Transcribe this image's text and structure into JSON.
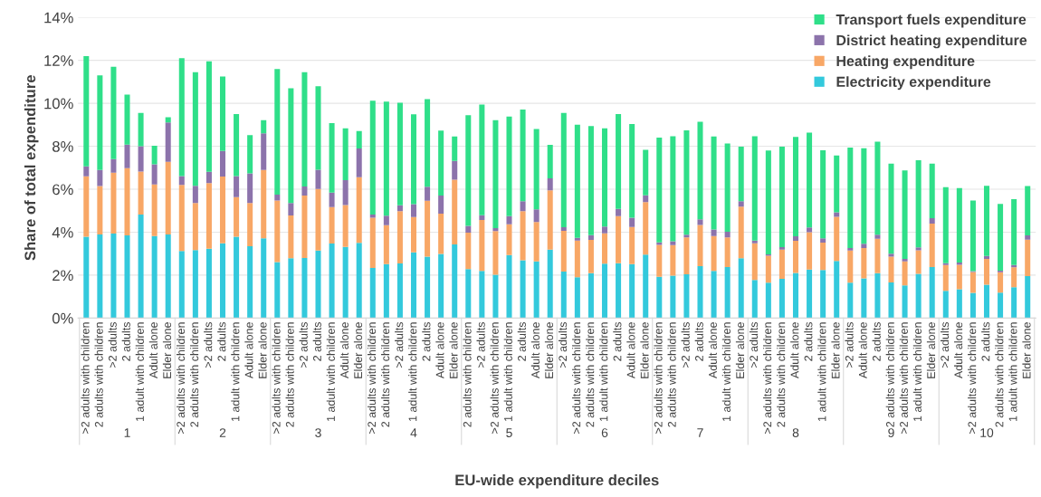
{
  "chart_data": {
    "type": "bar",
    "stacked": true,
    "xlabel": "EU-wide expenditure deciles",
    "ylabel": "Share of total expenditure",
    "categories": [
      ">2 adults with children",
      "2 adults with children",
      ">2 adults",
      "2 adults",
      "1 adult with children",
      "Adult alone",
      "Elder alone",
      ">2 adults with children",
      "2 adults with children",
      ">2 adults",
      "2 adults",
      "1 adult with children",
      "Adult alone",
      "Elder alone",
      ">2 adults with children",
      "2 adults with children",
      ">2 adults",
      "2 adults",
      "1 adult with children",
      "Adult alone",
      "Elder alone",
      ">2 adults with children",
      "2 adults with children",
      ">2 adults",
      "1 adult with children",
      "2 adults",
      "Adult alone",
      "Elder alone",
      "2 adults with children",
      ">2 adults",
      ">2 adults with children",
      "1 adult with children",
      "2 adults",
      "Adult alone",
      "Elder alone",
      ">2 adults",
      ">2 adults with children",
      "2 adults with children",
      "1 adult with children",
      "2 adults",
      "Adult alone",
      "Elder alone",
      ">2 adults with children",
      "2 adults with children",
      ">2 adults",
      "2 adults",
      "Adult alone",
      "1 adult with children",
      "Elder alone",
      ">2 adults",
      ">2 adults with children",
      "2 adults with children",
      "Adult alone",
      "2 adults",
      "1 adult with children",
      "Elder alone",
      ">2 adults",
      "Adult alone",
      "2 adults",
      "2 adults with children",
      ">2 adults with children",
      "1 adult with children",
      "Elder alone",
      ">2 adults",
      "Adult alone",
      ">2 adults with children",
      "2 adults",
      "2 adults with children",
      "1 adult with children",
      "Elder alone"
    ],
    "series": [
      {
        "name": "Electricity expenditure",
        "color": "#33c9dc",
        "values": [
          3.79,
          3.89,
          3.93,
          3.85,
          4.82,
          3.82,
          3.89,
          3.12,
          3.17,
          3.23,
          3.48,
          3.79,
          3.34,
          3.71,
          2.61,
          2.79,
          2.8,
          3.14,
          3.47,
          3.31,
          3.5,
          2.33,
          2.51,
          2.54,
          3.06,
          2.86,
          2.99,
          3.43,
          2.28,
          2.2,
          2.02,
          2.93,
          2.69,
          2.64,
          3.19,
          2.17,
          1.9,
          2.09,
          2.53,
          2.55,
          2.51,
          2.96,
          1.92,
          1.97,
          2.04,
          2.42,
          2.2,
          2.38,
          2.79,
          1.78,
          1.65,
          1.83,
          2.1,
          2.26,
          2.24,
          2.66,
          1.65,
          1.85,
          2.09,
          1.66,
          1.52,
          2.06,
          2.38,
          1.27,
          1.34,
          1.17,
          1.55,
          1.18,
          1.44,
          1.95
        ]
      },
      {
        "name": "Heating expenditure",
        "color": "#f8a766",
        "values": [
          2.81,
          2.26,
          2.84,
          3.13,
          2.0,
          2.4,
          3.39,
          3.08,
          2.19,
          3.06,
          3.11,
          1.84,
          2.02,
          3.19,
          2.86,
          1.99,
          2.91,
          2.87,
          1.7,
          1.95,
          3.06,
          2.34,
          1.82,
          2.44,
          1.64,
          2.6,
          1.87,
          3.01,
          1.7,
          2.37,
          2.03,
          1.44,
          2.29,
          1.83,
          2.76,
          1.89,
          1.71,
          1.55,
          1.42,
          2.2,
          1.73,
          2.44,
          1.49,
          1.43,
          1.72,
          1.92,
          1.62,
          1.38,
          2.4,
          1.7,
          1.25,
          1.36,
          1.5,
          1.74,
          1.27,
          2.05,
          1.49,
          1.41,
          1.6,
          1.2,
          1.12,
          1.1,
          2.02,
          1.2,
          1.14,
          0.97,
          1.2,
          0.95,
          0.93,
          1.7
        ]
      },
      {
        "name": "District heating expenditure",
        "color": "#8c73ab",
        "values": [
          0.46,
          0.75,
          0.63,
          1.1,
          1.18,
          0.94,
          1.83,
          0.41,
          0.8,
          0.52,
          1.19,
          0.98,
          1.38,
          1.7,
          0.28,
          0.58,
          0.42,
          0.9,
          0.67,
          1.16,
          1.34,
          0.15,
          0.44,
          0.27,
          0.6,
          0.66,
          0.85,
          0.88,
          0.31,
          0.22,
          0.14,
          0.38,
          0.46,
          0.59,
          0.56,
          0.17,
          0.13,
          0.22,
          0.31,
          0.33,
          0.43,
          0.32,
          0.11,
          0.18,
          0.12,
          0.26,
          0.31,
          0.26,
          0.25,
          0.13,
          0.07,
          0.11,
          0.21,
          0.22,
          0.2,
          0.22,
          0.12,
          0.2,
          0.19,
          0.14,
          0.12,
          0.13,
          0.25,
          0.08,
          0.11,
          0.05,
          0.14,
          0.08,
          0.1,
          0.2
        ]
      },
      {
        "name": "Transport fuels expenditure",
        "color": "#2fdf89",
        "values": [
          5.14,
          4.4,
          4.3,
          2.33,
          1.55,
          0.86,
          0.24,
          5.49,
          5.29,
          5.14,
          3.47,
          2.89,
          1.78,
          0.61,
          5.85,
          5.34,
          5.32,
          3.89,
          3.24,
          2.41,
          0.81,
          5.3,
          5.31,
          4.78,
          4.19,
          4.07,
          3.02,
          1.14,
          5.16,
          5.15,
          5.02,
          4.63,
          4.27,
          3.74,
          1.56,
          5.32,
          5.26,
          5.08,
          4.57,
          4.42,
          4.37,
          2.11,
          4.88,
          4.89,
          4.86,
          4.54,
          4.33,
          4.11,
          2.54,
          4.86,
          4.83,
          4.68,
          4.62,
          4.42,
          4.1,
          2.64,
          4.68,
          4.45,
          4.33,
          4.19,
          4.12,
          4.06,
          2.54,
          3.55,
          3.46,
          3.28,
          3.27,
          3.11,
          3.07,
          2.3
        ]
      }
    ],
    "annotations": [
      "1",
      "2",
      "3",
      "4",
      "5",
      "6",
      "7",
      "8",
      "9",
      "10"
    ],
    "ylim": [
      0,
      14
    ],
    "yticks": [
      {
        "value": 0,
        "label": "0%"
      },
      {
        "value": 2,
        "label": "2%"
      },
      {
        "value": 4,
        "label": "4%"
      },
      {
        "value": 6,
        "label": "6%"
      },
      {
        "value": 8,
        "label": "8%"
      },
      {
        "value": 10,
        "label": "10%"
      },
      {
        "value": 12,
        "label": "12%"
      },
      {
        "value": 14,
        "label": "14%"
      }
    ],
    "grid": "y",
    "legend": "top right"
  }
}
